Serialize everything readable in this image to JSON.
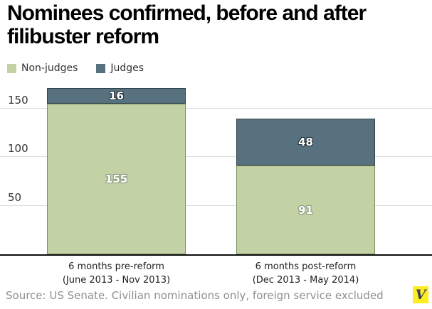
{
  "title": "Nominees confirmed, before and after filibuster reform",
  "chart_data": {
    "type": "bar",
    "stacked": true,
    "categories": [
      [
        "6 months pre-reform",
        "(June 2013 - Nov 2013)"
      ],
      [
        "6 months post-reform",
        "(Dec 2013 - May 2014)"
      ]
    ],
    "series": [
      {
        "name": "Non-judges",
        "values": [
          155,
          91
        ],
        "color": "#c3d2a4",
        "border_color": "#7e8e66"
      },
      {
        "name": "Judges",
        "values": [
          16,
          48
        ],
        "color": "#57727e",
        "border_color": "#32444d"
      }
    ],
    "totals": [
      171,
      139
    ],
    "title": "Nominees confirmed, before and after filibuster reform",
    "xlabel": "",
    "ylabel": "",
    "yticks": [
      50,
      100,
      150
    ],
    "ylim": [
      0,
      171
    ],
    "grid": true,
    "gridline_color": "#d9d9d9",
    "legend_position": "top-left"
  },
  "footer": {
    "source": "Source: US Senate. Civilian nominations only, foreign service excluded",
    "logo_letter": "V",
    "logo_bg_color": "#fcee21"
  }
}
